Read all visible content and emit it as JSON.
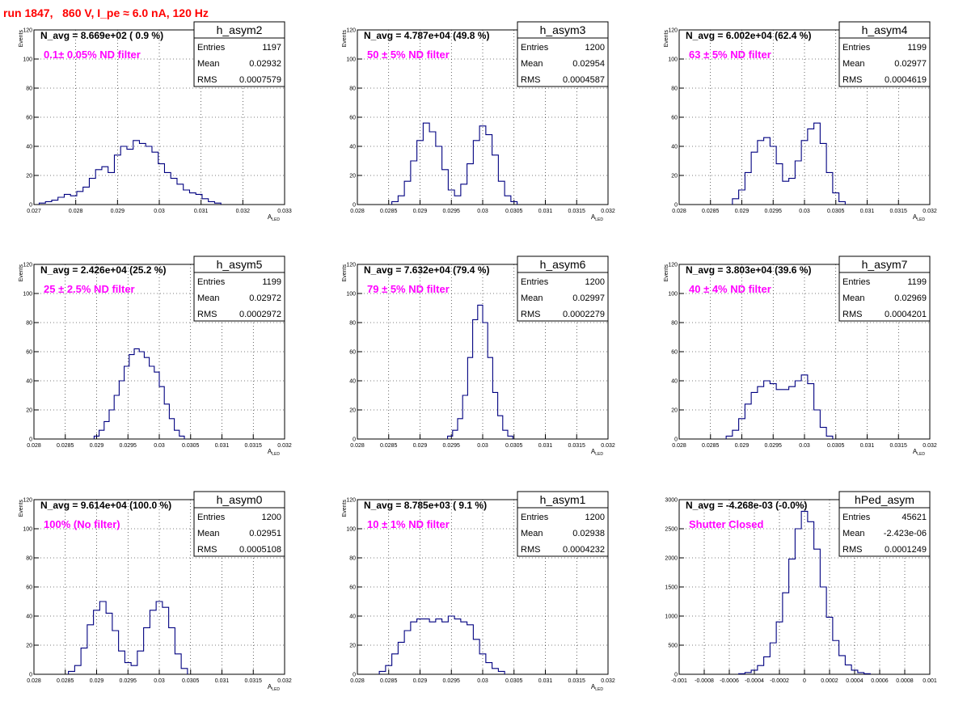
{
  "run_title": "run 1847,   860 V, I_pe ≈ 6.0 nA, 120 Hz",
  "colors": {
    "hist": "#000080",
    "annotation": "#ff00ff",
    "title": "#ff0000",
    "grid": "#000000"
  },
  "stat_labels": {
    "entries": "Entries",
    "mean": "Mean",
    "rms": "RMS"
  },
  "chart_data": [
    {
      "type": "histogram",
      "name": "h_asym2",
      "navg_text": "N_avg = 8.669e+02 ( 0.9 %)",
      "filter_text": "0.1± 0.05% ND filter",
      "stats": {
        "entries": "1197",
        "mean": "0.02932",
        "rms": "0.0007579"
      },
      "xlabel": "A_LED",
      "ylabel": "Events",
      "xlim": [
        0.027,
        0.033
      ],
      "ylim": [
        0,
        120
      ],
      "xticks": [
        "0.027",
        "0.028",
        "0.029",
        "0.03",
        "0.031",
        "0.032",
        "0.033"
      ],
      "yticks": [
        "0",
        "20",
        "40",
        "60",
        "80",
        "100",
        "120"
      ],
      "bins": [
        [
          0.0272,
          1
        ],
        [
          0.02735,
          2
        ],
        [
          0.0275,
          3
        ],
        [
          0.02765,
          5
        ],
        [
          0.0278,
          7
        ],
        [
          0.02795,
          6
        ],
        [
          0.0281,
          9
        ],
        [
          0.02825,
          12
        ],
        [
          0.0284,
          18
        ],
        [
          0.02855,
          24
        ],
        [
          0.0287,
          26
        ],
        [
          0.02885,
          22
        ],
        [
          0.029,
          34
        ],
        [
          0.02915,
          40
        ],
        [
          0.0293,
          38
        ],
        [
          0.02945,
          44
        ],
        [
          0.0296,
          42
        ],
        [
          0.02975,
          40
        ],
        [
          0.0299,
          36
        ],
        [
          0.03005,
          28
        ],
        [
          0.0302,
          22
        ],
        [
          0.03035,
          18
        ],
        [
          0.0305,
          14
        ],
        [
          0.03065,
          10
        ],
        [
          0.0308,
          8
        ],
        [
          0.03095,
          7
        ],
        [
          0.0311,
          4
        ],
        [
          0.03125,
          2
        ],
        [
          0.0314,
          1
        ]
      ]
    },
    {
      "type": "histogram",
      "name": "h_asym3",
      "navg_text": "N_avg = 4.787e+04 (49.8 %)",
      "filter_text": "50 ± 5% ND filter",
      "stats": {
        "entries": "1200",
        "mean": "0.02954",
        "rms": "0.0004587"
      },
      "xlabel": "A_LED",
      "ylabel": "Events",
      "xlim": [
        0.028,
        0.032
      ],
      "ylim": [
        0,
        120
      ],
      "xticks": [
        "0.028",
        "0.0285",
        "0.029",
        "0.0295",
        "0.03",
        "0.0305",
        "0.031",
        "0.0315",
        "0.032"
      ],
      "yticks": [
        "0",
        "20",
        "40",
        "60",
        "80",
        "100",
        "120"
      ],
      "bins": [
        [
          0.0286,
          2
        ],
        [
          0.0287,
          6
        ],
        [
          0.0288,
          16
        ],
        [
          0.0289,
          30
        ],
        [
          0.029,
          44
        ],
        [
          0.0291,
          56
        ],
        [
          0.0292,
          50
        ],
        [
          0.0293,
          40
        ],
        [
          0.0294,
          24
        ],
        [
          0.0295,
          10
        ],
        [
          0.0296,
          6
        ],
        [
          0.0297,
          14
        ],
        [
          0.0298,
          28
        ],
        [
          0.0299,
          44
        ],
        [
          0.03,
          54
        ],
        [
          0.0301,
          48
        ],
        [
          0.0302,
          34
        ],
        [
          0.0303,
          16
        ],
        [
          0.0304,
          6
        ],
        [
          0.0305,
          2
        ]
      ]
    },
    {
      "type": "histogram",
      "name": "h_asym4",
      "navg_text": "N_avg = 6.002e+04 (62.4 %)",
      "filter_text": "63 ± 5% ND filter",
      "stats": {
        "entries": "1199",
        "mean": "0.02977",
        "rms": "0.0004619"
      },
      "xlabel": "A_LED",
      "ylabel": "Events",
      "xlim": [
        0.028,
        0.032
      ],
      "ylim": [
        0,
        120
      ],
      "xticks": [
        "0.028",
        "0.0285",
        "0.029",
        "0.0295",
        "0.03",
        "0.0305",
        "0.031",
        "0.0315",
        "0.032"
      ],
      "yticks": [
        "0",
        "20",
        "40",
        "60",
        "80",
        "100",
        "120"
      ],
      "bins": [
        [
          0.0289,
          4
        ],
        [
          0.029,
          10
        ],
        [
          0.0291,
          22
        ],
        [
          0.0292,
          36
        ],
        [
          0.0293,
          44
        ],
        [
          0.0294,
          46
        ],
        [
          0.0295,
          40
        ],
        [
          0.0296,
          28
        ],
        [
          0.0297,
          16
        ],
        [
          0.0298,
          18
        ],
        [
          0.0299,
          30
        ],
        [
          0.03,
          44
        ],
        [
          0.0301,
          52
        ],
        [
          0.0302,
          56
        ],
        [
          0.0303,
          42
        ],
        [
          0.0304,
          22
        ],
        [
          0.0305,
          8
        ],
        [
          0.0306,
          2
        ]
      ]
    },
    {
      "type": "histogram",
      "name": "h_asym5",
      "navg_text": "N_avg = 2.426e+04 (25.2 %)",
      "filter_text": "25 ± 2.5% ND filter",
      "stats": {
        "entries": "1199",
        "mean": "0.02972",
        "rms": "0.0002972"
      },
      "xlabel": "A_LED",
      "ylabel": "Events",
      "xlim": [
        0.028,
        0.032
      ],
      "ylim": [
        0,
        120
      ],
      "xticks": [
        "0.028",
        "0.0285",
        "0.029",
        "0.0295",
        "0.03",
        "0.0305",
        "0.031",
        "0.0315",
        "0.032"
      ],
      "yticks": [
        "0",
        "20",
        "40",
        "60",
        "80",
        "100",
        "120"
      ],
      "bins": [
        [
          0.029,
          2
        ],
        [
          0.02908,
          6
        ],
        [
          0.02916,
          12
        ],
        [
          0.02924,
          20
        ],
        [
          0.02932,
          30
        ],
        [
          0.0294,
          40
        ],
        [
          0.02948,
          50
        ],
        [
          0.02956,
          58
        ],
        [
          0.02964,
          62
        ],
        [
          0.02972,
          60
        ],
        [
          0.0298,
          56
        ],
        [
          0.02988,
          50
        ],
        [
          0.02996,
          46
        ],
        [
          0.03004,
          36
        ],
        [
          0.03012,
          24
        ],
        [
          0.0302,
          14
        ],
        [
          0.03028,
          6
        ],
        [
          0.03036,
          2
        ]
      ]
    },
    {
      "type": "histogram",
      "name": "h_asym6",
      "navg_text": "N_avg = 7.632e+04 (79.4 %)",
      "filter_text": "79 ± 5% ND filter",
      "stats": {
        "entries": "1200",
        "mean": "0.02997",
        "rms": "0.0002279"
      },
      "xlabel": "A_LED",
      "ylabel": "Events",
      "xlim": [
        0.028,
        0.032
      ],
      "ylim": [
        0,
        120
      ],
      "xticks": [
        "0.028",
        "0.0285",
        "0.029",
        "0.0295",
        "0.03",
        "0.0305",
        "0.031",
        "0.0315",
        "0.032"
      ],
      "yticks": [
        "0",
        "20",
        "40",
        "60",
        "80",
        "100",
        "120"
      ],
      "bins": [
        [
          0.02948,
          2
        ],
        [
          0.02956,
          6
        ],
        [
          0.02964,
          14
        ],
        [
          0.02972,
          30
        ],
        [
          0.0298,
          56
        ],
        [
          0.02988,
          82
        ],
        [
          0.02996,
          92
        ],
        [
          0.03004,
          80
        ],
        [
          0.03012,
          56
        ],
        [
          0.0302,
          32
        ],
        [
          0.03028,
          16
        ],
        [
          0.03036,
          6
        ],
        [
          0.03044,
          2
        ]
      ]
    },
    {
      "type": "histogram",
      "name": "h_asym7",
      "navg_text": "N_avg = 3.803e+04 (39.6 %)",
      "filter_text": "40 ± 4% ND filter",
      "stats": {
        "entries": "1199",
        "mean": "0.02969",
        "rms": "0.0004201"
      },
      "xlabel": "A_LED",
      "ylabel": "Events",
      "xlim": [
        0.028,
        0.032
      ],
      "ylim": [
        0,
        120
      ],
      "xticks": [
        "0.028",
        "0.0285",
        "0.029",
        "0.0295",
        "0.03",
        "0.0305",
        "0.031",
        "0.0315",
        "0.032"
      ],
      "yticks": [
        "0",
        "20",
        "40",
        "60",
        "80",
        "100",
        "120"
      ],
      "bins": [
        [
          0.0288,
          2
        ],
        [
          0.0289,
          6
        ],
        [
          0.029,
          14
        ],
        [
          0.0291,
          24
        ],
        [
          0.0292,
          32
        ],
        [
          0.0293,
          36
        ],
        [
          0.0294,
          40
        ],
        [
          0.0295,
          38
        ],
        [
          0.0296,
          34
        ],
        [
          0.0297,
          34
        ],
        [
          0.0298,
          36
        ],
        [
          0.0299,
          40
        ],
        [
          0.03,
          44
        ],
        [
          0.0301,
          38
        ],
        [
          0.0302,
          20
        ],
        [
          0.0303,
          8
        ],
        [
          0.0304,
          2
        ]
      ]
    },
    {
      "type": "histogram",
      "name": "h_asym0",
      "navg_text": "N_avg = 9.614e+04 (100.0 %)",
      "filter_text": "100% (No filter)",
      "stats": {
        "entries": "1200",
        "mean": "0.02951",
        "rms": "0.0005108"
      },
      "xlabel": "A_LED",
      "ylabel": "Events",
      "xlim": [
        0.028,
        0.032
      ],
      "ylim": [
        0,
        120
      ],
      "xticks": [
        "0.028",
        "0.0285",
        "0.029",
        "0.0295",
        "0.03",
        "0.0305",
        "0.031",
        "0.0315",
        "0.032"
      ],
      "yticks": [
        "0",
        "20",
        "40",
        "60",
        "80",
        "100",
        "120"
      ],
      "bins": [
        [
          0.0286,
          2
        ],
        [
          0.0287,
          6
        ],
        [
          0.0288,
          18
        ],
        [
          0.0289,
          34
        ],
        [
          0.029,
          44
        ],
        [
          0.0291,
          50
        ],
        [
          0.0292,
          42
        ],
        [
          0.0293,
          30
        ],
        [
          0.0294,
          16
        ],
        [
          0.0295,
          8
        ],
        [
          0.0296,
          6
        ],
        [
          0.0297,
          16
        ],
        [
          0.0298,
          32
        ],
        [
          0.0299,
          44
        ],
        [
          0.03,
          50
        ],
        [
          0.0301,
          46
        ],
        [
          0.0302,
          32
        ],
        [
          0.0303,
          14
        ],
        [
          0.0304,
          4
        ]
      ]
    },
    {
      "type": "histogram",
      "name": "h_asym1",
      "navg_text": "N_avg = 8.785e+03 ( 9.1 %)",
      "filter_text": "10 ± 1% ND filter",
      "stats": {
        "entries": "1200",
        "mean": "0.02938",
        "rms": "0.0004232"
      },
      "xlabel": "A_LED",
      "ylabel": "Events",
      "xlim": [
        0.028,
        0.032
      ],
      "ylim": [
        0,
        120
      ],
      "xticks": [
        "0.028",
        "0.0285",
        "0.029",
        "0.0295",
        "0.03",
        "0.0305",
        "0.031",
        "0.0315",
        "0.032"
      ],
      "yticks": [
        "0",
        "20",
        "40",
        "60",
        "80",
        "100",
        "120"
      ],
      "bins": [
        [
          0.0284,
          2
        ],
        [
          0.0285,
          6
        ],
        [
          0.0286,
          14
        ],
        [
          0.0287,
          22
        ],
        [
          0.0288,
          30
        ],
        [
          0.0289,
          36
        ],
        [
          0.029,
          38
        ],
        [
          0.0291,
          38
        ],
        [
          0.0292,
          36
        ],
        [
          0.0293,
          38
        ],
        [
          0.0294,
          36
        ],
        [
          0.0295,
          40
        ],
        [
          0.0296,
          38
        ],
        [
          0.0297,
          36
        ],
        [
          0.0298,
          34
        ],
        [
          0.0299,
          24
        ],
        [
          0.03,
          14
        ],
        [
          0.0301,
          8
        ],
        [
          0.0302,
          4
        ],
        [
          0.0303,
          2
        ]
      ]
    },
    {
      "type": "histogram",
      "name": "hPed_asym",
      "navg_text": "N_avg = -4.268e-03 (-0.0%)",
      "filter_text": "Shutter Closed",
      "stats": {
        "entries": "45621",
        "mean": "-2.423e-06",
        "rms": "0.0001249"
      },
      "xlabel": "",
      "ylabel": "",
      "xlim": [
        -0.001,
        0.001
      ],
      "ylim": [
        0,
        3000
      ],
      "xticks": [
        "-0.001",
        "-0.0008",
        "-0.0006",
        "-0.0004",
        "-0.0002",
        "0",
        "0.0002",
        "0.0004",
        "0.0006",
        "0.0008",
        "0.001"
      ],
      "yticks": [
        "0",
        "500",
        "1000",
        "1500",
        "2000",
        "2500",
        "3000"
      ],
      "bins": [
        [
          -0.0005,
          10
        ],
        [
          -0.00045,
          30
        ],
        [
          -0.0004,
          70
        ],
        [
          -0.00035,
          150
        ],
        [
          -0.0003,
          300
        ],
        [
          -0.00025,
          540
        ],
        [
          -0.0002,
          900
        ],
        [
          -0.00015,
          1400
        ],
        [
          -0.0001,
          1980
        ],
        [
          -5e-05,
          2500
        ],
        [
          0,
          2800
        ],
        [
          5e-05,
          2620
        ],
        [
          0.0001,
          2150
        ],
        [
          0.00015,
          1500
        ],
        [
          0.0002,
          980
        ],
        [
          0.00025,
          580
        ],
        [
          0.0003,
          320
        ],
        [
          0.00035,
          160
        ],
        [
          0.0004,
          70
        ],
        [
          0.00045,
          28
        ],
        [
          0.0005,
          10
        ]
      ]
    }
  ]
}
